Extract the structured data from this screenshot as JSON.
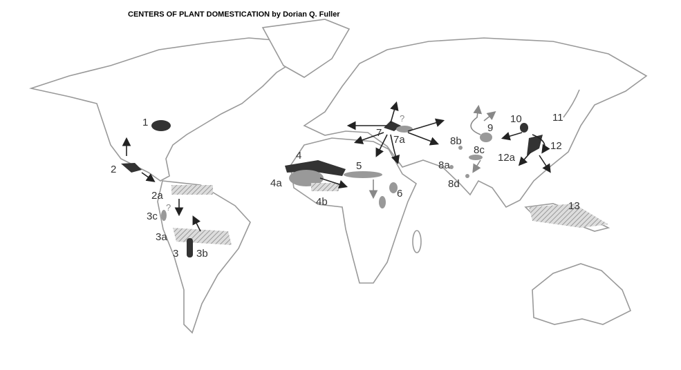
{
  "header": {
    "title": "CENTERS OF PLANT DOMESTICATION by Dorian Q. Fuller"
  },
  "labels": [
    "1",
    "2",
    "2a",
    "3",
    "3a",
    "3b",
    "3c",
    "?",
    "4",
    "4a",
    "4b",
    "5",
    "6",
    "7",
    "7a",
    "?",
    "8a",
    "8b",
    "8c",
    "8d",
    "9",
    "10",
    "11",
    "12",
    "12a",
    "13"
  ]
}
